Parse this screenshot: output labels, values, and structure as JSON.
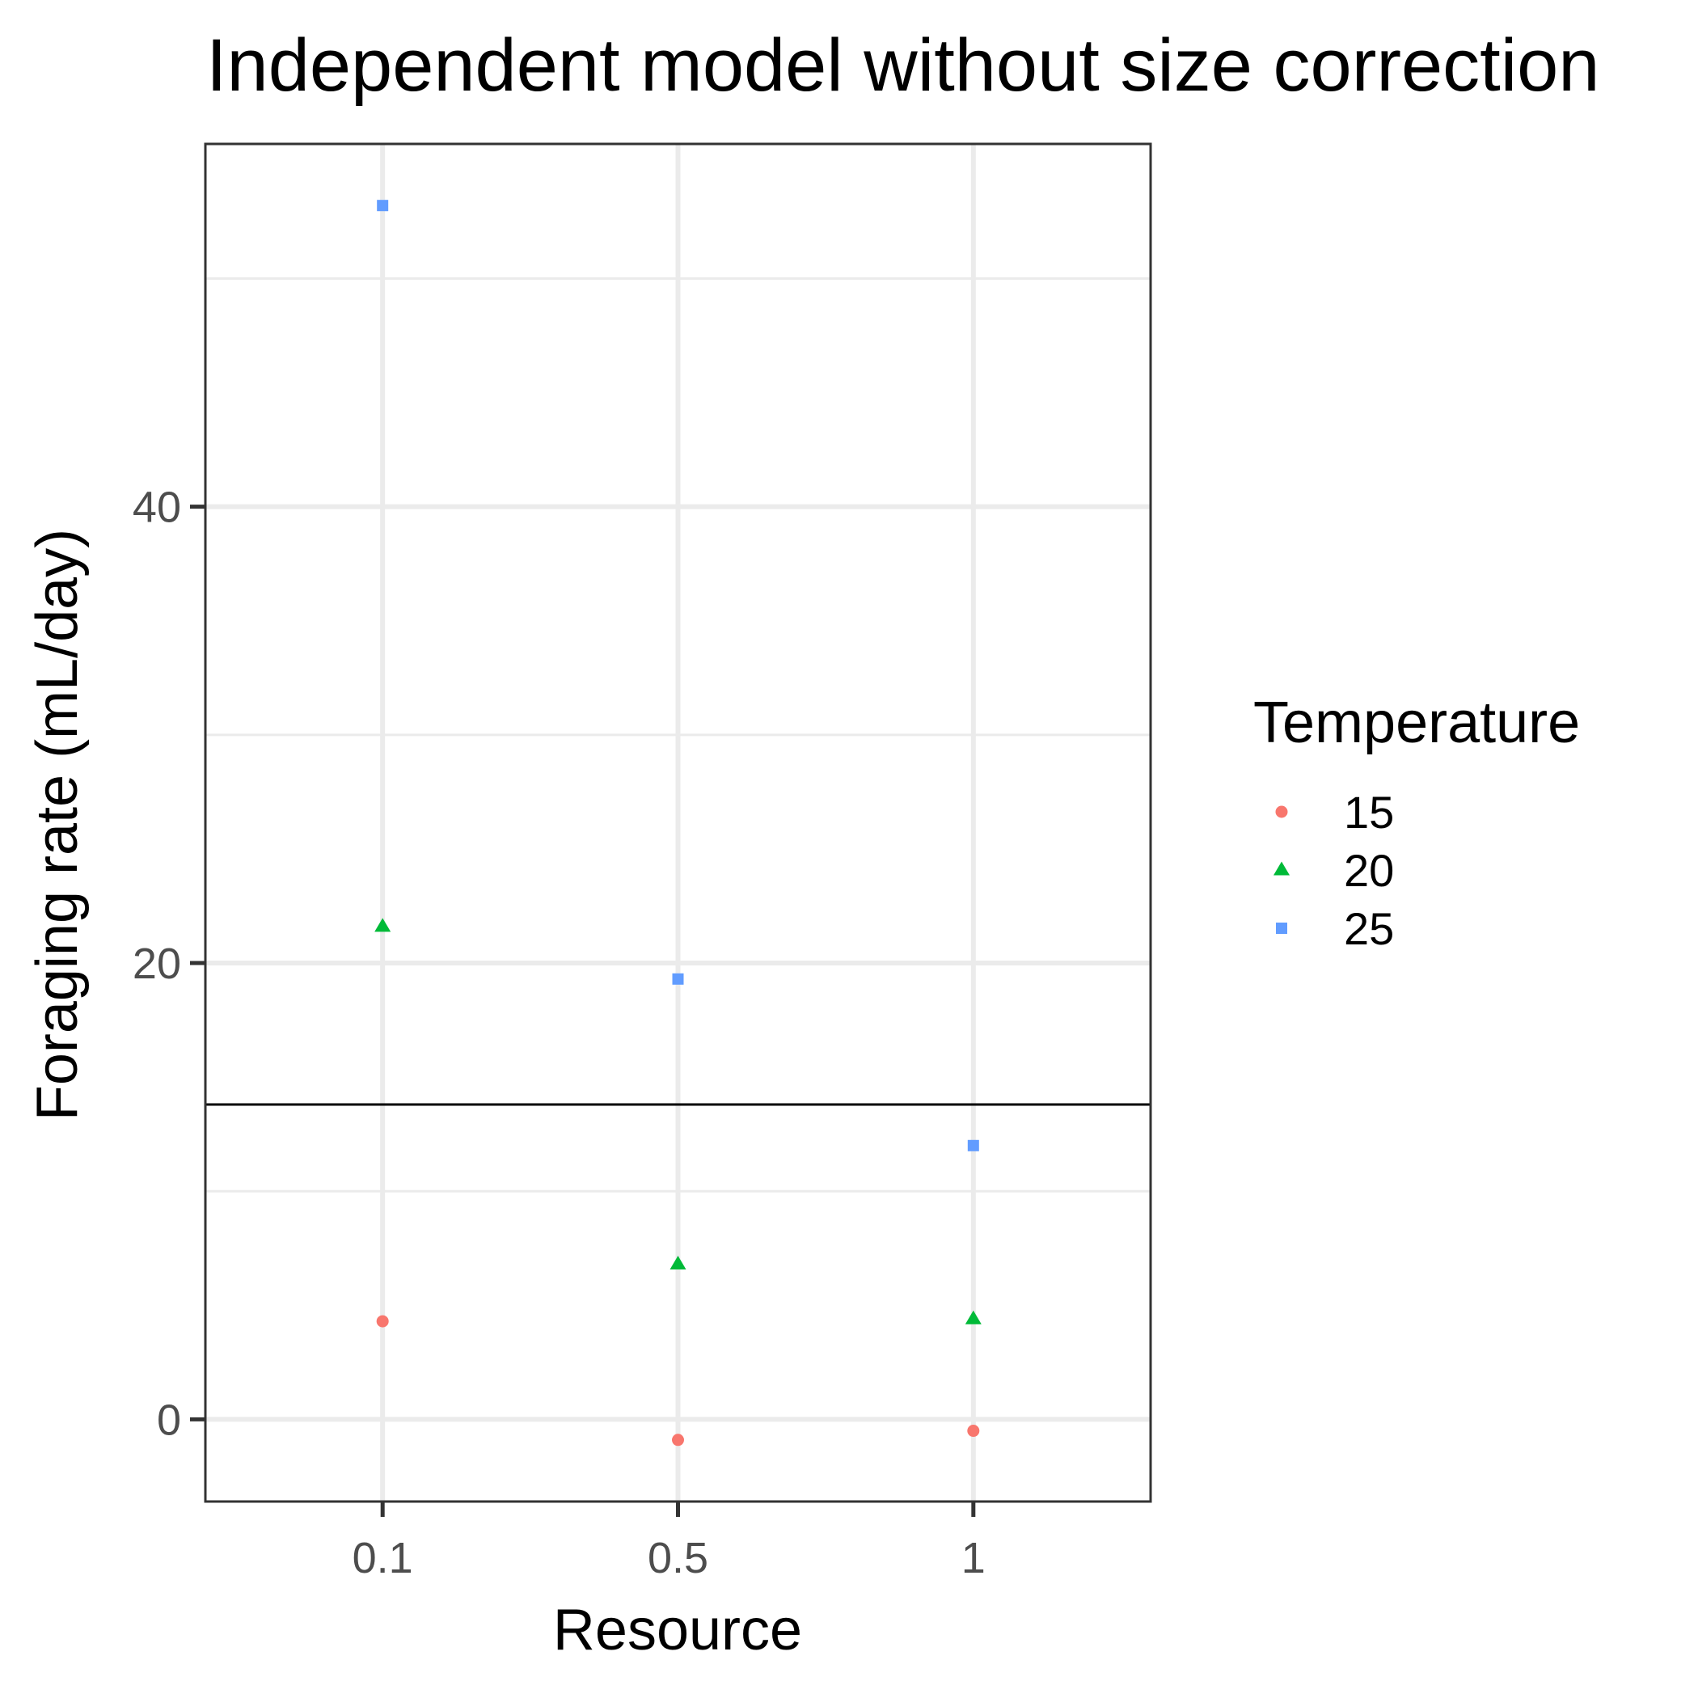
{
  "chart_data": {
    "type": "scatter",
    "title": "Independent model without size correction",
    "xlabel": "Resource",
    "ylabel": "Foraging rate (mL/day)",
    "x_categories": [
      "0.1",
      "0.5",
      "1"
    ],
    "y_ticks": [
      0,
      20,
      40
    ],
    "ylim": [
      -3.6,
      55.9
    ],
    "reference_line_y": 13.8,
    "grid": true,
    "legend": {
      "title": "Temperature",
      "position": "right"
    },
    "series": [
      {
        "name": "15",
        "shape": "circle",
        "color": "#F8766D",
        "points": [
          {
            "x": "0.1",
            "y": 4.3
          },
          {
            "x": "0.5",
            "y": -0.9
          },
          {
            "x": "1",
            "y": -0.5
          }
        ]
      },
      {
        "name": "20",
        "shape": "triangle",
        "color": "#00BA38",
        "points": [
          {
            "x": "0.1",
            "y": 21.6
          },
          {
            "x": "0.5",
            "y": 6.8
          },
          {
            "x": "1",
            "y": 4.4
          }
        ]
      },
      {
        "name": "25",
        "shape": "square",
        "color": "#619CFF",
        "points": [
          {
            "x": "0.1",
            "y": 53.2
          },
          {
            "x": "0.5",
            "y": 19.3
          },
          {
            "x": "1",
            "y": 12.0
          }
        ]
      }
    ]
  }
}
